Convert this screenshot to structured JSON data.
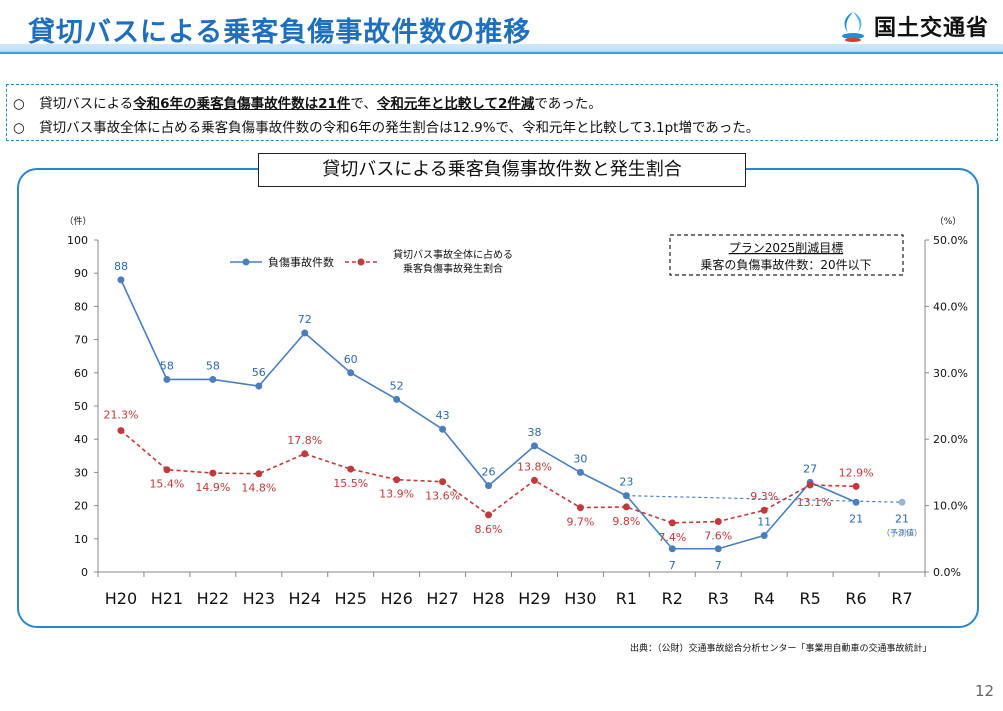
{
  "header": {
    "title": "貸切バスによる乗客負傷事故件数の推移",
    "logo_text": "国土交通省"
  },
  "summary": {
    "line1": {
      "bullet": "○",
      "p1": "貸切バスによる",
      "b1": "令和6年の乗客負傷事故件数は21件",
      "p2": "で、",
      "b2": "令和元年と比較して2件減",
      "p3": "であった。"
    },
    "line2": {
      "bullet": "○",
      "text": "貸切バス事故全体に占める乗客負傷事故件数の令和6年の発生割合は12.9%で、令和元年と比較して3.1pt増であった。"
    }
  },
  "chart_title": "貸切バスによる乗客負傷事故件数と発生割合",
  "target_box": {
    "line1": "プラン2025削減目標",
    "line2": "乗客の負傷事故件数：20件以下"
  },
  "colors": {
    "count_series": "#4a7fbf",
    "rate_series": "#c0393b",
    "accent": "#2a86c9"
  },
  "chart_data": {
    "type": "line",
    "categories": [
      "H20",
      "H21",
      "H22",
      "H23",
      "H24",
      "H25",
      "H26",
      "H27",
      "H28",
      "H29",
      "H30",
      "R1",
      "R2",
      "R3",
      "R4",
      "R5",
      "R6",
      "R7"
    ],
    "y_left": {
      "unit_label": "（件）",
      "ylim": [
        0,
        100
      ],
      "ticks": [
        "0",
        "10",
        "20",
        "30",
        "40",
        "50",
        "60",
        "70",
        "80",
        "90",
        "100"
      ]
    },
    "y_right": {
      "unit_label": "（%）",
      "ylim": [
        0,
        50
      ],
      "ticks": [
        "0.0%",
        "10.0%",
        "20.0%",
        "30.0%",
        "40.0%",
        "50.0%"
      ]
    },
    "legend_placement": "top-center",
    "series": [
      {
        "name": "負傷事故件数",
        "axis": "left",
        "values": [
          88,
          58,
          58,
          56,
          72,
          60,
          52,
          43,
          26,
          38,
          30,
          23,
          7,
          7,
          11,
          27,
          21,
          null
        ],
        "labels": [
          "88",
          "58",
          "58",
          "56",
          "72",
          "60",
          "52",
          "43",
          "26",
          "38",
          "30",
          "23",
          "7",
          "7",
          "11",
          "27",
          "21",
          ""
        ]
      },
      {
        "name_line1": "貸切バス事故全体に占める",
        "name_line2": "乗客負傷事故発生割合",
        "axis": "right",
        "values": [
          21.3,
          15.4,
          14.9,
          14.8,
          17.8,
          15.5,
          13.9,
          13.6,
          8.6,
          13.8,
          9.7,
          9.8,
          7.4,
          7.6,
          9.3,
          13.1,
          12.9,
          null
        ],
        "labels": [
          "21.3%",
          "15.4%",
          "14.9%",
          "14.8%",
          "17.8%",
          "15.5%",
          "13.9%",
          "13.6%",
          "8.6%",
          "13.8%",
          "9.7%",
          "9.8%",
          "7.4%",
          "7.6%",
          "9.3%",
          "13.1%",
          "12.9%",
          ""
        ]
      }
    ],
    "forecast": {
      "from_category": "R1",
      "to_category": "R7",
      "from_value": 23,
      "to_value": 21,
      "label": "21",
      "note": "（予測値）"
    }
  },
  "footer": {
    "source": "出典：（公財）交通事故総合分析センター「事業用自動車の交通事故統計」",
    "page_number": "12"
  }
}
